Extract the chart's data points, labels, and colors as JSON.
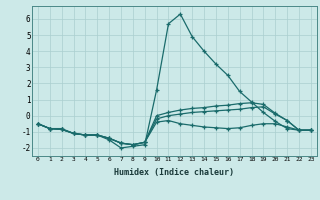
{
  "xlabel": "Humidex (Indice chaleur)",
  "bg_color": "#cce9e8",
  "line_color": "#1a6b6b",
  "grid_color": "#aacfcf",
  "xlim": [
    -0.5,
    23.5
  ],
  "ylim": [
    -2.5,
    6.8
  ],
  "xticks": [
    0,
    1,
    2,
    3,
    4,
    5,
    6,
    7,
    8,
    9,
    10,
    11,
    12,
    13,
    14,
    15,
    16,
    17,
    18,
    19,
    20,
    21,
    22,
    23
  ],
  "yticks": [
    -2,
    -1,
    0,
    1,
    2,
    3,
    4,
    5,
    6
  ],
  "series": [
    [
      -0.5,
      -0.8,
      -0.8,
      -1.1,
      -1.2,
      -1.2,
      -1.5,
      -2.0,
      -1.9,
      -1.8,
      1.6,
      5.7,
      6.3,
      4.9,
      4.0,
      3.2,
      2.5,
      1.5,
      0.85,
      0.2,
      -0.35,
      -0.8,
      -0.9,
      -0.9
    ],
    [
      -0.5,
      -0.8,
      -0.85,
      -1.1,
      -1.2,
      -1.2,
      -1.4,
      -1.7,
      -1.8,
      -1.65,
      -0.4,
      -0.3,
      -0.5,
      -0.6,
      -0.7,
      -0.75,
      -0.8,
      -0.75,
      -0.6,
      -0.5,
      -0.5,
      -0.7,
      -0.9,
      -0.9
    ],
    [
      -0.5,
      -0.8,
      -0.85,
      -1.1,
      -1.2,
      -1.2,
      -1.4,
      -1.7,
      -1.8,
      -1.65,
      -0.2,
      0.0,
      0.1,
      0.2,
      0.25,
      0.3,
      0.35,
      0.4,
      0.5,
      0.55,
      0.1,
      -0.3,
      -0.9,
      -0.9
    ],
    [
      -0.5,
      -0.8,
      -0.85,
      -1.1,
      -1.2,
      -1.2,
      -1.4,
      -1.7,
      -1.8,
      -1.65,
      0.0,
      0.2,
      0.35,
      0.45,
      0.5,
      0.6,
      0.65,
      0.75,
      0.8,
      0.7,
      0.15,
      -0.3,
      -0.9,
      -0.9
    ]
  ]
}
